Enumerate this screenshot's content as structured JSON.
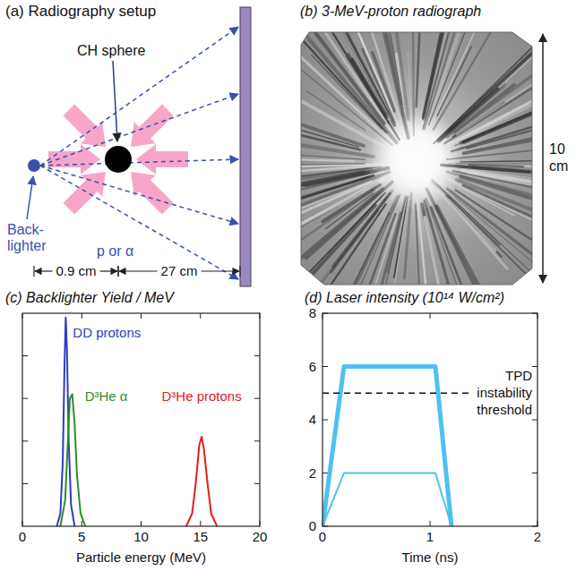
{
  "diagram": {
    "title": "(a) Radiography setup",
    "sphere_label": "CH sphere",
    "backlighter_label": [
      "Back-",
      "lighter"
    ],
    "particle_label": "p or α",
    "distances": [
      "0.9 cm",
      "27 cm"
    ]
  },
  "radiograph": {
    "title": "(b) 3-MeV-proton radiograph",
    "scale_label": "10 cm"
  },
  "chart_data": [
    {
      "type": "line",
      "title": "(c) Backlighter Yield / MeV",
      "x_label": "Particle energy (MeV)",
      "xlim": [
        0,
        20
      ],
      "xticks": [
        0,
        5,
        10,
        15,
        20
      ],
      "ylim": [
        0,
        5
      ],
      "yticks": [
        1,
        2,
        3,
        4
      ],
      "tick_labels": "x",
      "series": [
        {
          "name": "DD protons",
          "color": "#2b3fc0",
          "x": [
            2.9,
            3.2,
            3.4,
            3.55,
            3.65,
            3.75,
            3.9,
            4.1,
            4.4
          ],
          "values": [
            0,
            0.3,
            1.5,
            3.8,
            4.9,
            4.2,
            2.0,
            0.5,
            0
          ]
        },
        {
          "name": "D³He α",
          "color": "#2e8b2e",
          "x": [
            3.2,
            3.6,
            3.8,
            4.0,
            4.2,
            4.4,
            4.6,
            4.9,
            5.3
          ],
          "values": [
            0,
            0.6,
            1.8,
            3.0,
            3.1,
            2.4,
            1.2,
            0.3,
            0
          ]
        },
        {
          "name": "D³He protons",
          "color": "#e0201c",
          "x": [
            13.8,
            14.3,
            14.6,
            14.9,
            15.1,
            15.3,
            15.6,
            15.9,
            16.4
          ],
          "values": [
            0,
            0.3,
            1.0,
            1.9,
            2.1,
            1.8,
            1.0,
            0.3,
            0
          ]
        }
      ]
    },
    {
      "type": "line",
      "title": "(d) Laser intensity (10¹⁴ W/cm²)",
      "x_label": "Time (ns)",
      "xlim": [
        0,
        2
      ],
      "xticks": [
        0,
        1,
        2
      ],
      "ylim": [
        0,
        8
      ],
      "yticks": [
        0,
        2,
        4,
        6,
        8
      ],
      "series": [
        {
          "color": "#4fc1ef",
          "line_style": "thick",
          "x": [
            0,
            0.2,
            1.05,
            1.2
          ],
          "values": [
            0,
            6,
            6,
            0
          ]
        },
        {
          "color": "#4fc1ef",
          "line_style": "thin",
          "x": [
            0,
            0.2,
            1.05,
            1.2
          ],
          "values": [
            0,
            2,
            2,
            0
          ]
        }
      ],
      "annotations": [
        {
          "text": [
            "TPD",
            "instability",
            "threshold"
          ],
          "y": 5,
          "line_style": "dashed"
        }
      ]
    }
  ]
}
